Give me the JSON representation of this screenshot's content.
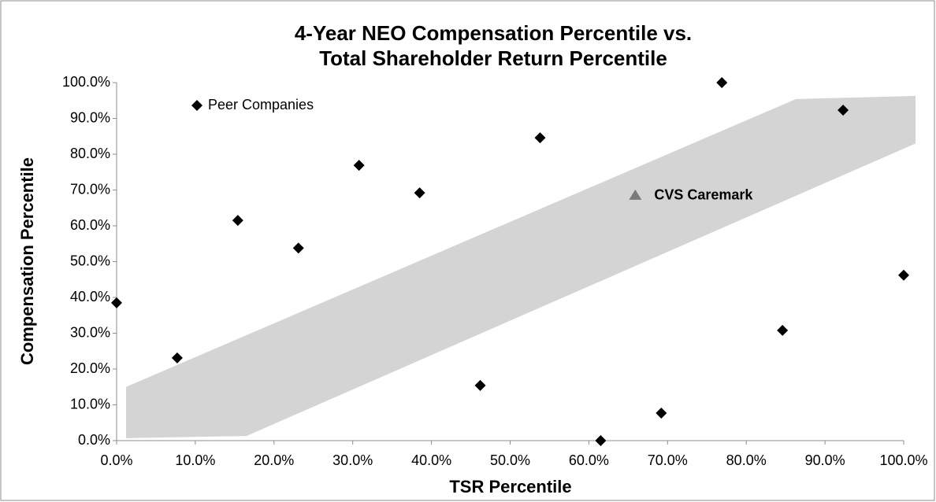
{
  "chart_data": {
    "type": "scatter",
    "title": [
      "4-Year NEO Compensation Percentile vs.",
      "Total Shareholder Return Percentile"
    ],
    "x_label": "TSR Percentile",
    "y_label": "Compensation Percentile",
    "xlim": [
      0,
      100
    ],
    "ylim": [
      0,
      100
    ],
    "xticks": [
      {
        "value": 0,
        "label": "0.0%"
      },
      {
        "value": 10,
        "label": "10.0%"
      },
      {
        "value": 20,
        "label": "20.0%"
      },
      {
        "value": 30,
        "label": "30.0%"
      },
      {
        "value": 40,
        "label": "40.0%"
      },
      {
        "value": 50,
        "label": "50.0%"
      },
      {
        "value": 60,
        "label": "60.0%"
      },
      {
        "value": 70,
        "label": "70.0%"
      },
      {
        "value": 80,
        "label": "80.0%"
      },
      {
        "value": 90,
        "label": "90.0%"
      },
      {
        "value": 100,
        "label": "100.0%"
      }
    ],
    "yticks": [
      {
        "value": 0,
        "label": "0.0%"
      },
      {
        "value": 10,
        "label": "10.0%"
      },
      {
        "value": 20,
        "label": "20.0%"
      },
      {
        "value": 30,
        "label": "30.0%"
      },
      {
        "value": 40,
        "label": "40.0%"
      },
      {
        "value": 50,
        "label": "50.0%"
      },
      {
        "value": 60,
        "label": "60.0%"
      },
      {
        "value": 70,
        "label": "70.0%"
      },
      {
        "value": 80,
        "label": "80.0%"
      },
      {
        "value": 90,
        "label": "90.0%"
      },
      {
        "value": 100,
        "label": "100.0%"
      }
    ],
    "grid": false,
    "legend": "top-left",
    "band": {
      "color": "#d4d4d4",
      "x": [
        1.2,
        86.3,
        101.5,
        101.5,
        16.5,
        1.2
      ],
      "y": [
        15,
        95.4,
        96.3,
        83,
        1.3,
        0.7
      ]
    },
    "series": [
      {
        "name": "Peer Companies",
        "color": "#000000",
        "marker": "diamond",
        "x": [
          0,
          7.7,
          15.4,
          23.1,
          30.8,
          38.5,
          46.2,
          53.8,
          61.5,
          69.2,
          76.9,
          84.6,
          92.3,
          100
        ],
        "values": [
          38.5,
          23.1,
          61.5,
          53.8,
          76.9,
          69.2,
          15.4,
          84.6,
          0,
          7.7,
          100,
          30.8,
          92.3,
          46.2
        ]
      },
      {
        "name": "CVS Caremark",
        "color": "#7a7a7a",
        "marker": "triangle",
        "label_inline": true,
        "x": [
          65.9
        ],
        "values": [
          68.6
        ]
      }
    ]
  }
}
